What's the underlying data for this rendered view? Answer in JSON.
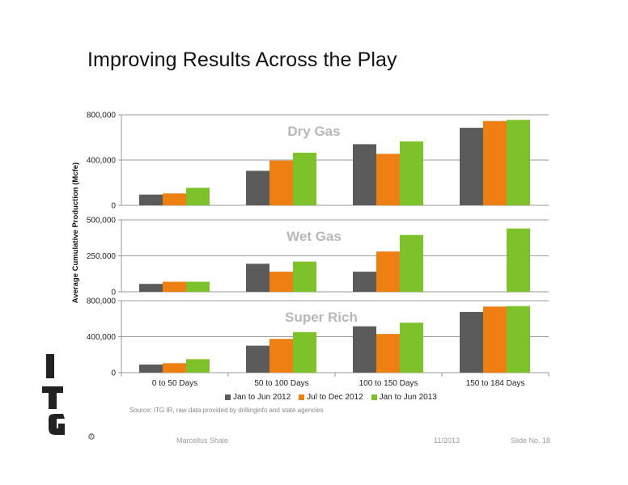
{
  "slide": {
    "title": "Improving Results Across the Play",
    "source": "Source: ITG IR, raw data provided by drillinginfo and state agencies",
    "footer_left": "Marcellus Shale",
    "footer_date": "11/2013",
    "footer_slide": "Slide No. 18",
    "logo": "ITG"
  },
  "colors": {
    "jan_jun_2012": "#5b5b5b",
    "jul_dec_2012": "#ee8013",
    "jan_jun_2013": "#7dc22a"
  },
  "chart_data": {
    "type": "bar",
    "ylabel": "Average Cumulative Production (Mcfe)",
    "categories": [
      "0 to 50 Days",
      "50 to 100 Days",
      "100 to 150 Days",
      "150 to 184 Days"
    ],
    "legend": [
      "Jan to Jun 2012",
      "Jul to Dec 2012",
      "Jan to Jun 2013"
    ],
    "legend_position": "bottom",
    "grid": true,
    "panels": [
      {
        "title": "Dry Gas",
        "ylim": [
          0,
          800000
        ],
        "ticks": [
          "0",
          "400,000",
          "800,000"
        ],
        "series": [
          {
            "name": "Jan to Jun 2012",
            "values": [
              95000,
              305000,
              540000,
              685000
            ]
          },
          {
            "name": "Jul to Dec 2012",
            "values": [
              105000,
              395000,
              455000,
              745000
            ]
          },
          {
            "name": "Jan to Jun 2013",
            "values": [
              155000,
              465000,
              565000,
              755000
            ]
          }
        ]
      },
      {
        "title": "Wet Gas",
        "ylim": [
          0,
          500000
        ],
        "ticks": [
          "0",
          "250,000",
          "500,000"
        ],
        "series": [
          {
            "name": "Jan to Jun 2012",
            "values": [
              55000,
              195000,
              140000,
              null
            ]
          },
          {
            "name": "Jul to Dec 2012",
            "values": [
              70000,
              140000,
              280000,
              null
            ]
          },
          {
            "name": "Jan to Jun 2013",
            "values": [
              70000,
              210000,
              395000,
              440000
            ]
          }
        ]
      },
      {
        "title": "Super Rich",
        "ylim": [
          0,
          800000
        ],
        "ticks": [
          "0",
          "400,000",
          "800,000"
        ],
        "series": [
          {
            "name": "Jan to Jun 2012",
            "values": [
              90000,
              300000,
              515000,
              675000
            ]
          },
          {
            "name": "Jul to Dec 2012",
            "values": [
              105000,
              375000,
              430000,
              735000
            ]
          },
          {
            "name": "Jan to Jun 2013",
            "values": [
              150000,
              450000,
              555000,
              740000
            ]
          }
        ]
      }
    ]
  }
}
